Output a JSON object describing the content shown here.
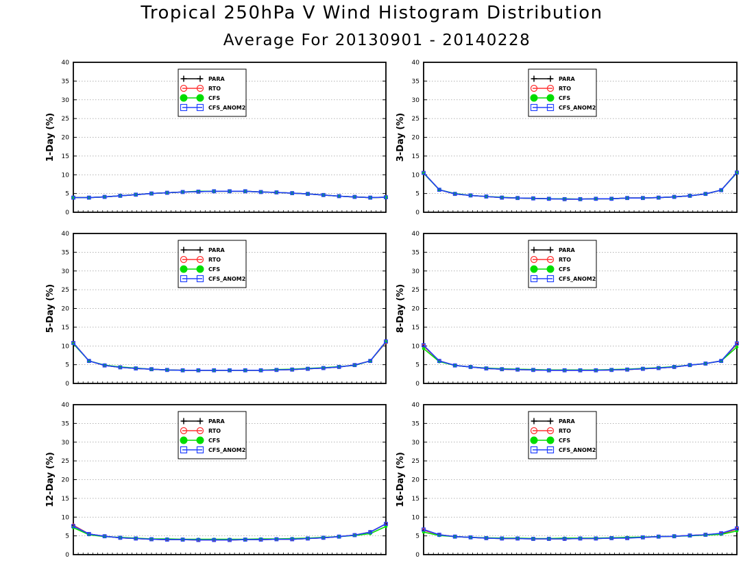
{
  "title": "Tropical 250hPa V Wind Histogram Distribution",
  "subtitle": "Average For 20130901 - 20140228",
  "colors": {
    "PARA": "#000000",
    "RTO": "#ff3030",
    "CFS": "#00dd00",
    "CFS_ANOM2": "#2040ff"
  },
  "chart_data": [
    {
      "type": "line",
      "ylabel": "1-Day (%)",
      "ylim": [
        0,
        40
      ],
      "yticks": [
        0,
        5,
        10,
        15,
        20,
        25,
        30,
        35,
        40
      ],
      "grid": true,
      "legend_position": "top-center",
      "series": [
        {
          "name": "PARA",
          "values": [
            3.9,
            3.9,
            4.1,
            4.4,
            4.7,
            5.0,
            5.2,
            5.4,
            5.5,
            5.6,
            5.6,
            5.6,
            5.4,
            5.3,
            5.1,
            4.9,
            4.6,
            4.3,
            4.1,
            3.9,
            4.0
          ]
        },
        {
          "name": "RTO",
          "values": [
            3.9,
            3.9,
            4.1,
            4.4,
            4.7,
            5.0,
            5.2,
            5.4,
            5.5,
            5.6,
            5.6,
            5.6,
            5.4,
            5.3,
            5.1,
            4.9,
            4.6,
            4.3,
            4.1,
            3.9,
            4.0
          ]
        },
        {
          "name": "CFS",
          "values": [
            3.9,
            3.9,
            4.1,
            4.4,
            4.7,
            5.0,
            5.2,
            5.4,
            5.6,
            5.6,
            5.6,
            5.6,
            5.4,
            5.3,
            5.1,
            4.9,
            4.6,
            4.3,
            4.1,
            3.9,
            4.0
          ]
        },
        {
          "name": "CFS_ANOM2",
          "values": [
            3.9,
            3.9,
            4.1,
            4.4,
            4.7,
            5.0,
            5.2,
            5.4,
            5.5,
            5.6,
            5.6,
            5.6,
            5.4,
            5.3,
            5.1,
            4.9,
            4.6,
            4.3,
            4.1,
            3.9,
            4.0
          ]
        }
      ]
    },
    {
      "type": "line",
      "ylabel": "3-Day (%)",
      "ylim": [
        0,
        40
      ],
      "yticks": [
        0,
        5,
        10,
        15,
        20,
        25,
        30,
        35,
        40
      ],
      "grid": true,
      "legend_position": "top-center",
      "series": [
        {
          "name": "PARA",
          "values": [
            10.5,
            6.0,
            4.9,
            4.5,
            4.2,
            3.9,
            3.8,
            3.7,
            3.6,
            3.5,
            3.5,
            3.6,
            3.6,
            3.8,
            3.8,
            3.9,
            4.1,
            4.4,
            4.9,
            5.9,
            10.6
          ]
        },
        {
          "name": "RTO",
          "values": [
            10.5,
            6.0,
            4.9,
            4.5,
            4.2,
            3.9,
            3.8,
            3.7,
            3.6,
            3.5,
            3.5,
            3.6,
            3.6,
            3.8,
            3.8,
            3.9,
            4.1,
            4.4,
            4.9,
            5.9,
            10.6
          ]
        },
        {
          "name": "CFS",
          "values": [
            10.4,
            6.0,
            5.0,
            4.5,
            4.2,
            4.0,
            3.8,
            3.7,
            3.6,
            3.6,
            3.5,
            3.6,
            3.6,
            3.8,
            3.8,
            3.9,
            4.1,
            4.4,
            4.9,
            5.9,
            10.5
          ]
        },
        {
          "name": "CFS_ANOM2",
          "values": [
            10.5,
            6.0,
            4.9,
            4.5,
            4.2,
            3.9,
            3.8,
            3.7,
            3.6,
            3.5,
            3.5,
            3.6,
            3.6,
            3.8,
            3.8,
            3.9,
            4.1,
            4.4,
            4.9,
            5.9,
            10.6
          ]
        }
      ]
    },
    {
      "type": "line",
      "ylabel": "5-Day (%)",
      "ylim": [
        0,
        40
      ],
      "yticks": [
        0,
        5,
        10,
        15,
        20,
        25,
        30,
        35,
        40
      ],
      "grid": true,
      "legend_position": "top-center",
      "series": [
        {
          "name": "PARA",
          "values": [
            10.8,
            6.0,
            4.8,
            4.3,
            4.0,
            3.8,
            3.6,
            3.5,
            3.5,
            3.5,
            3.5,
            3.5,
            3.5,
            3.6,
            3.7,
            3.9,
            4.1,
            4.4,
            4.9,
            6.0,
            11.0
          ]
        },
        {
          "name": "RTO",
          "values": [
            10.8,
            6.0,
            4.8,
            4.3,
            4.0,
            3.8,
            3.6,
            3.5,
            3.5,
            3.5,
            3.5,
            3.5,
            3.5,
            3.6,
            3.7,
            3.9,
            4.1,
            4.4,
            4.9,
            6.0,
            11.0
          ]
        },
        {
          "name": "CFS",
          "values": [
            10.6,
            6.0,
            4.9,
            4.4,
            4.1,
            3.8,
            3.6,
            3.5,
            3.5,
            3.5,
            3.5,
            3.5,
            3.5,
            3.7,
            3.8,
            4.0,
            4.2,
            4.5,
            4.8,
            6.0,
            11.1
          ]
        },
        {
          "name": "CFS_ANOM2",
          "values": [
            10.8,
            6.0,
            4.8,
            4.3,
            4.0,
            3.8,
            3.6,
            3.5,
            3.5,
            3.5,
            3.5,
            3.5,
            3.5,
            3.6,
            3.7,
            3.9,
            4.1,
            4.4,
            4.9,
            6.0,
            11.2
          ]
        }
      ]
    },
    {
      "type": "line",
      "ylabel": "8-Day (%)",
      "ylim": [
        0,
        40
      ],
      "yticks": [
        0,
        5,
        10,
        15,
        20,
        25,
        30,
        35,
        40
      ],
      "grid": true,
      "legend_position": "top-center",
      "series": [
        {
          "name": "PARA",
          "values": [
            10.0,
            6.0,
            4.8,
            4.4,
            4.0,
            3.8,
            3.7,
            3.6,
            3.5,
            3.5,
            3.5,
            3.5,
            3.6,
            3.7,
            3.9,
            4.1,
            4.4,
            4.9,
            5.3,
            6.0,
            10.5
          ]
        },
        {
          "name": "RTO",
          "values": [
            10.0,
            6.0,
            4.8,
            4.4,
            4.0,
            3.8,
            3.7,
            3.6,
            3.5,
            3.5,
            3.5,
            3.5,
            3.6,
            3.7,
            3.9,
            4.1,
            4.4,
            4.9,
            5.3,
            6.0,
            10.5
          ]
        },
        {
          "name": "CFS",
          "values": [
            9.3,
            5.8,
            4.8,
            4.4,
            4.1,
            3.9,
            3.8,
            3.7,
            3.6,
            3.6,
            3.6,
            3.6,
            3.7,
            3.8,
            4.0,
            4.2,
            4.5,
            4.9,
            5.3,
            6.0,
            9.7
          ]
        },
        {
          "name": "CFS_ANOM2",
          "values": [
            10.2,
            6.0,
            4.8,
            4.4,
            4.0,
            3.8,
            3.7,
            3.6,
            3.5,
            3.5,
            3.5,
            3.5,
            3.6,
            3.7,
            3.9,
            4.1,
            4.4,
            4.9,
            5.3,
            6.0,
            10.7
          ]
        }
      ]
    },
    {
      "type": "line",
      "ylabel": "12-Day (%)",
      "ylim": [
        0,
        40
      ],
      "yticks": [
        0,
        5,
        10,
        15,
        20,
        25,
        30,
        35,
        40
      ],
      "grid": true,
      "legend_position": "top-center",
      "series": [
        {
          "name": "PARA",
          "values": [
            7.8,
            5.5,
            4.9,
            4.5,
            4.3,
            4.1,
            4.0,
            4.0,
            3.9,
            3.9,
            3.9,
            4.0,
            4.0,
            4.1,
            4.1,
            4.3,
            4.5,
            4.8,
            5.2,
            6.0,
            8.2
          ]
        },
        {
          "name": "RTO",
          "values": [
            7.8,
            5.5,
            4.9,
            4.5,
            4.3,
            4.1,
            4.0,
            4.0,
            3.9,
            3.9,
            3.9,
            4.0,
            4.0,
            4.1,
            4.1,
            4.3,
            4.5,
            4.8,
            5.2,
            6.0,
            8.2
          ]
        },
        {
          "name": "CFS",
          "values": [
            7.2,
            5.3,
            4.8,
            4.6,
            4.4,
            4.2,
            4.2,
            4.1,
            4.1,
            4.1,
            4.1,
            4.1,
            4.2,
            4.2,
            4.3,
            4.4,
            4.6,
            4.8,
            5.1,
            5.6,
            7.5
          ]
        },
        {
          "name": "CFS_ANOM2",
          "values": [
            7.6,
            5.5,
            4.9,
            4.5,
            4.3,
            4.1,
            4.0,
            4.0,
            3.9,
            3.9,
            3.9,
            4.0,
            4.0,
            4.1,
            4.1,
            4.3,
            4.5,
            4.8,
            5.2,
            6.0,
            8.2
          ]
        }
      ]
    },
    {
      "type": "line",
      "ylabel": "16-Day (%)",
      "ylim": [
        0,
        40
      ],
      "yticks": [
        0,
        5,
        10,
        15,
        20,
        25,
        30,
        35,
        40
      ],
      "grid": true,
      "legend_position": "top-center",
      "series": [
        {
          "name": "PARA",
          "values": [
            6.5,
            5.3,
            4.8,
            4.6,
            4.4,
            4.3,
            4.3,
            4.2,
            4.2,
            4.2,
            4.3,
            4.3,
            4.4,
            4.5,
            4.6,
            4.8,
            4.9,
            5.1,
            5.3,
            5.6,
            6.8
          ]
        },
        {
          "name": "RTO",
          "values": [
            6.5,
            5.3,
            4.8,
            4.6,
            4.4,
            4.3,
            4.3,
            4.2,
            4.2,
            4.2,
            4.3,
            4.3,
            4.4,
            4.5,
            4.6,
            4.8,
            4.9,
            5.1,
            5.3,
            5.6,
            6.8
          ]
        },
        {
          "name": "CFS",
          "values": [
            6.0,
            5.1,
            4.8,
            4.6,
            4.5,
            4.4,
            4.4,
            4.3,
            4.3,
            4.4,
            4.4,
            4.4,
            4.5,
            4.6,
            4.7,
            4.8,
            4.9,
            5.0,
            5.2,
            5.4,
            6.3
          ]
        },
        {
          "name": "CFS_ANOM2",
          "values": [
            6.7,
            5.3,
            4.8,
            4.6,
            4.4,
            4.3,
            4.3,
            4.2,
            4.2,
            4.2,
            4.3,
            4.3,
            4.4,
            4.4,
            4.6,
            4.8,
            4.9,
            5.1,
            5.3,
            5.7,
            7.0
          ]
        }
      ]
    }
  ]
}
